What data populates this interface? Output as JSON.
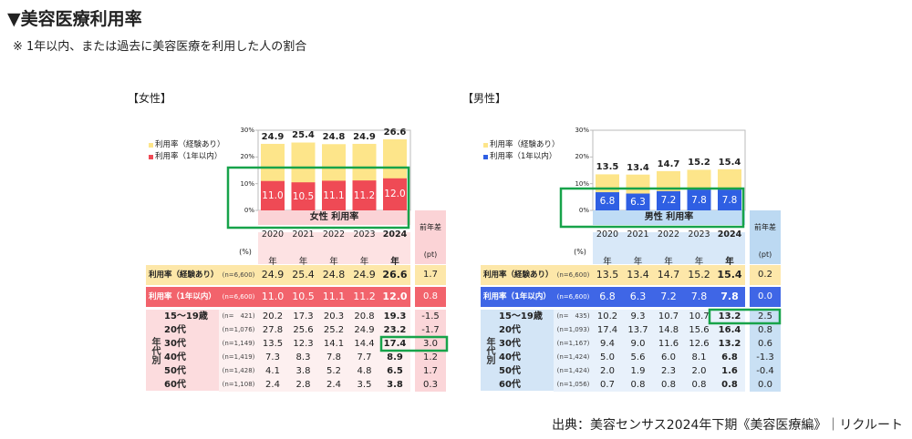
{
  "title": "▼美容医療利用率",
  "note": "※ 1年以内、または過去に美容医療を利用した人の割合",
  "source": "出典：美容センサス2024年下期《美容医療編》｜リクルート",
  "chart_data": [
    {
      "type": "bar",
      "panel_label": "【女性】",
      "caption": "女性 利用率",
      "categories": [
        "2020年",
        "2021年",
        "2022年",
        "2023年",
        "2024年"
      ],
      "series": [
        {
          "name": "利用率（経験あり）",
          "color": "#fde58a",
          "values": [
            24.9,
            25.4,
            24.8,
            24.9,
            26.6
          ],
          "value_labels": [
            "24.9",
            "25.4",
            "24.8",
            "24.9",
            "26.6"
          ]
        },
        {
          "name": "利用率（1年以内）",
          "color": "#ef4a55",
          "values": [
            11.0,
            10.5,
            11.1,
            11.2,
            12.0
          ],
          "value_labels": [
            "11.0",
            "10.5",
            "11.1",
            "11.2",
            "12.0"
          ]
        }
      ],
      "ylim": [
        0,
        30
      ],
      "yticks": [
        {
          "value": 0,
          "label": "0%"
        },
        {
          "value": 10,
          "label": "10%"
        },
        {
          "value": 20,
          "label": "20%"
        },
        {
          "value": 30,
          "label": "30%"
        }
      ]
    },
    {
      "type": "bar",
      "panel_label": "【男性】",
      "caption": "男性 利用率",
      "categories": [
        "2020年",
        "2021年",
        "2022年",
        "2023年",
        "2024年"
      ],
      "series": [
        {
          "name": "利用率（経験あり）",
          "color": "#fde58a",
          "values": [
            13.5,
            13.4,
            14.7,
            15.2,
            15.4
          ],
          "value_labels": [
            "13.5",
            "13.4",
            "14.7",
            "15.2",
            "15.4"
          ]
        },
        {
          "name": "利用率（1年以内）",
          "color": "#2f5fe3",
          "values": [
            6.8,
            6.3,
            7.2,
            7.8,
            7.8
          ],
          "value_labels": [
            "6.8",
            "6.3",
            "7.2",
            "7.8",
            "7.8"
          ]
        }
      ],
      "ylim": [
        0,
        30
      ],
      "yticks": [
        {
          "value": 0,
          "label": "0%"
        },
        {
          "value": 10,
          "label": "10%"
        },
        {
          "value": 20,
          "label": "20%"
        },
        {
          "value": 30,
          "label": "30%"
        }
      ]
    }
  ],
  "tables": [
    {
      "unit": "(%)",
      "diff_header": "前年差(pt)",
      "group_label": "年代別",
      "rows": [
        {
          "label": "利用率（経験あり）",
          "n": "(n=6,600)",
          "values": [
            "24.9",
            "25.4",
            "24.8",
            "24.9",
            "26.6"
          ],
          "diff": "1.7"
        },
        {
          "label": "利用率（1年以内）",
          "n": "(n=6,600)",
          "values": [
            "11.0",
            "10.5",
            "11.1",
            "11.2",
            "12.0"
          ],
          "diff": "0.8"
        },
        {
          "label": "15〜19歳",
          "n": "(n=　421)",
          "values": [
            "20.2",
            "17.3",
            "20.3",
            "20.8",
            "19.3"
          ],
          "diff": "-1.5"
        },
        {
          "label": "20代",
          "n": "(n=1,076)",
          "values": [
            "27.8",
            "25.6",
            "25.2",
            "24.9",
            "23.2"
          ],
          "diff": "-1.7"
        },
        {
          "label": "30代",
          "n": "(n=1,149)",
          "values": [
            "13.5",
            "12.3",
            "14.1",
            "14.4",
            "17.4"
          ],
          "diff": "3.0"
        },
        {
          "label": "40代",
          "n": "(n=1,419)",
          "values": [
            "7.3",
            "8.3",
            "7.8",
            "7.7",
            "8.9"
          ],
          "diff": "1.2"
        },
        {
          "label": "50代",
          "n": "(n=1,428)",
          "values": [
            "4.1",
            "3.8",
            "5.2",
            "4.8",
            "6.5"
          ],
          "diff": "1.7"
        },
        {
          "label": "60代",
          "n": "(n=1,108)",
          "values": [
            "2.4",
            "2.8",
            "2.4",
            "3.5",
            "3.8"
          ],
          "diff": "0.3"
        }
      ]
    },
    {
      "unit": "(%)",
      "diff_header": "前年差(pt)",
      "group_label": "年代別",
      "rows": [
        {
          "label": "利用率（経験あり）",
          "n": "(n=6,600)",
          "values": [
            "13.5",
            "13.4",
            "14.7",
            "15.2",
            "15.4"
          ],
          "diff": "0.2"
        },
        {
          "label": "利用率（1年以内）",
          "n": "(n=6,600)",
          "values": [
            "6.8",
            "6.3",
            "7.2",
            "7.8",
            "7.8"
          ],
          "diff": "0.0"
        },
        {
          "label": "15〜19歳",
          "n": "(n=　435)",
          "values": [
            "10.2",
            "9.3",
            "10.7",
            "10.7",
            "13.2"
          ],
          "diff": "2.5"
        },
        {
          "label": "20代",
          "n": "(n=1,093)",
          "values": [
            "17.4",
            "13.7",
            "14.8",
            "15.6",
            "16.4"
          ],
          "diff": "0.8"
        },
        {
          "label": "30代",
          "n": "(n=1,167)",
          "values": [
            "9.4",
            "9.0",
            "11.6",
            "12.6",
            "13.2"
          ],
          "diff": "0.6"
        },
        {
          "label": "40代",
          "n": "(n=1,424)",
          "values": [
            "5.0",
            "5.6",
            "6.0",
            "8.1",
            "6.8"
          ],
          "diff": "-1.3"
        },
        {
          "label": "50代",
          "n": "(n=1,424)",
          "values": [
            "2.0",
            "1.9",
            "2.3",
            "2.0",
            "1.6"
          ],
          "diff": "-0.4"
        },
        {
          "label": "60代",
          "n": "(n=1,056)",
          "values": [
            "0.7",
            "0.8",
            "0.8",
            "0.8",
            "0.8"
          ],
          "diff": "0.0"
        }
      ]
    }
  ]
}
